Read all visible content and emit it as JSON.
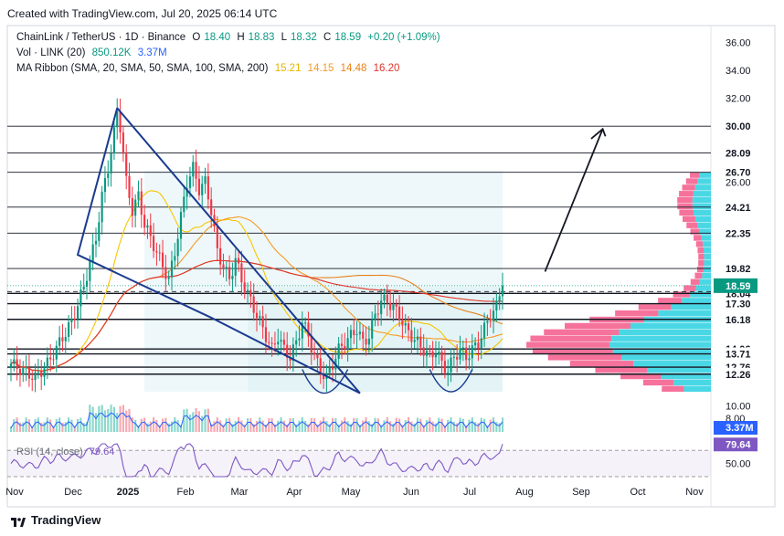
{
  "header": {
    "created": "Created with TradingView.com, Jul 20, 2025 06:14 UTC"
  },
  "legend": {
    "symbol": "ChainLink / TetherUS · 1D · Binance",
    "o_label": "O",
    "o_val": "18.40",
    "h_label": "H",
    "h_val": "18.83",
    "l_label": "L",
    "l_val": "18.32",
    "c_label": "C",
    "c_val": "18.59",
    "change": "+0.20 (+1.09%)",
    "vol_label": "Vol · LINK (20)",
    "vol_val1": "850.12K",
    "vol_val2": "3.37M",
    "ma_label": "MA Ribbon (SMA, 20, SMA, 50, SMA, 100, SMA, 200)",
    "ma_vals": [
      "15.21",
      "14.15",
      "14.48",
      "16.20"
    ],
    "rsi_label": "RSI (14, close)",
    "rsi_val": "79.64"
  },
  "footer": {
    "brand": "TradingView"
  },
  "colors": {
    "up": "#089981",
    "down": "#f23645",
    "ma20": "#f7c600",
    "ma50": "#f59a23",
    "ma100": "#e8811a",
    "ma200": "#e0342b",
    "pattern": "#1a3a8f",
    "volume_ma": "#2962ff",
    "rsi": "#7e57c2",
    "profile_up": "#2ad0e0",
    "profile_down": "#f2437a"
  },
  "chart_data": {
    "type": "candlestick",
    "x_ticks": [
      "Nov",
      "Dec",
      "2025",
      "Feb",
      "Mar",
      "Apr",
      "May",
      "Jun",
      "Jul",
      "Aug",
      "Sep",
      "Oct",
      "Nov"
    ],
    "y_ticks": [
      "36.00",
      "34.00",
      "32.00",
      "26.00",
      "10.00"
    ],
    "ylim": [
      9.5,
      37.2
    ],
    "price_levels": [
      {
        "label": "30.00",
        "value": 30.0
      },
      {
        "label": "28.09",
        "value": 28.09
      },
      {
        "label": "26.70",
        "value": 26.7
      },
      {
        "label": "24.21",
        "value": 24.21
      },
      {
        "label": "22.35",
        "value": 22.35
      },
      {
        "label": "19.82",
        "value": 19.82
      },
      {
        "label": "18.04",
        "value": 18.04
      },
      {
        "label": "17.30",
        "value": 17.3
      },
      {
        "label": "16.18",
        "value": 16.18
      },
      {
        "label": "14.06",
        "value": 14.06
      },
      {
        "label": "13.71",
        "value": 13.71
      },
      {
        "label": "12.76",
        "value": 12.76
      },
      {
        "label": "12.26",
        "value": 12.26
      }
    ],
    "current_price": {
      "label": "18.59",
      "value": 18.59
    },
    "volume": {
      "axis_label": "8.00",
      "current_label": "3.37M"
    },
    "rsi": {
      "axis_label": "50.00",
      "current_label": "79.64",
      "value": 79.64
    },
    "price_path": [
      [
        0,
        13.0
      ],
      [
        4,
        12.5
      ],
      [
        8,
        12.0
      ],
      [
        12,
        13.0
      ],
      [
        16,
        14.5
      ],
      [
        20,
        16.0
      ],
      [
        24,
        18.5
      ],
      [
        28,
        22.0
      ],
      [
        30,
        25.0
      ],
      [
        32,
        27.0
      ],
      [
        34,
        29.5
      ],
      [
        35,
        31.0
      ],
      [
        36,
        30.0
      ],
      [
        38,
        26.0
      ],
      [
        40,
        24.0
      ],
      [
        42,
        25.0
      ],
      [
        44,
        23.0
      ],
      [
        46,
        22.0
      ],
      [
        48,
        21.0
      ],
      [
        50,
        20.0
      ],
      [
        52,
        19.0
      ],
      [
        54,
        21.0
      ],
      [
        56,
        23.5
      ],
      [
        58,
        26.0
      ],
      [
        60,
        27.0
      ],
      [
        62,
        25.5
      ],
      [
        64,
        26.0
      ],
      [
        66,
        24.0
      ],
      [
        68,
        21.0
      ],
      [
        70,
        20.0
      ],
      [
        72,
        19.0
      ],
      [
        74,
        20.5
      ],
      [
        76,
        19.0
      ],
      [
        78,
        18.0
      ],
      [
        80,
        17.0
      ],
      [
        82,
        16.0
      ],
      [
        84,
        15.0
      ],
      [
        86,
        14.0
      ],
      [
        88,
        15.0
      ],
      [
        90,
        14.0
      ],
      [
        92,
        13.5
      ],
      [
        94,
        14.5
      ],
      [
        96,
        16.0
      ],
      [
        98,
        15.0
      ],
      [
        100,
        13.5
      ],
      [
        102,
        12.5
      ],
      [
        104,
        12.0
      ],
      [
        106,
        13.0
      ],
      [
        108,
        14.0
      ],
      [
        110,
        14.5
      ],
      [
        112,
        15.0
      ],
      [
        114,
        15.5
      ],
      [
        116,
        14.5
      ],
      [
        118,
        15.0
      ],
      [
        120,
        16.5
      ],
      [
        122,
        17.5
      ],
      [
        124,
        17.5
      ],
      [
        126,
        17.0
      ],
      [
        128,
        16.5
      ],
      [
        130,
        15.5
      ],
      [
        132,
        15.0
      ],
      [
        134,
        14.5
      ],
      [
        136,
        14.0
      ],
      [
        138,
        13.5
      ],
      [
        140,
        14.0
      ],
      [
        142,
        13.0
      ],
      [
        144,
        12.5
      ],
      [
        146,
        13.5
      ],
      [
        148,
        14.0
      ],
      [
        150,
        13.5
      ],
      [
        152,
        14.0
      ],
      [
        154,
        14.5
      ],
      [
        156,
        15.5
      ],
      [
        158,
        16.5
      ],
      [
        160,
        17.0
      ],
      [
        161,
        18.0
      ],
      [
        162,
        18.59
      ]
    ]
  }
}
